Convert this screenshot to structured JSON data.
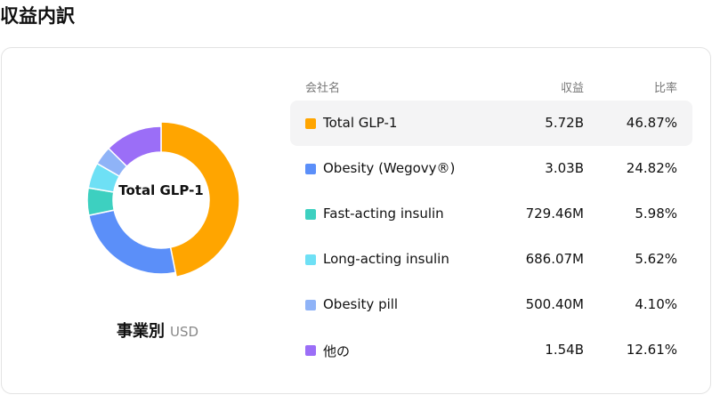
{
  "title": "収益内訳",
  "chart": {
    "center_label": "Total GLP-1",
    "caption": "事業別",
    "unit": "USD"
  },
  "table": {
    "headers": {
      "name": "会社名",
      "revenue": "収益",
      "rate": "比率"
    },
    "rows": [
      {
        "name": "Total GLP-1",
        "revenue": "5.72B",
        "rate": "46.87%",
        "color": "#ffa500",
        "active": true
      },
      {
        "name": "Obesity (Wegovy®)",
        "revenue": "3.03B",
        "rate": "24.82%",
        "color": "#5b8ff9",
        "active": false
      },
      {
        "name": "Fast-acting insulin",
        "revenue": "729.46M",
        "rate": "5.98%",
        "color": "#3dd0c0",
        "active": false
      },
      {
        "name": "Long-acting insulin",
        "revenue": "686.07M",
        "rate": "5.62%",
        "color": "#6ee0f5",
        "active": false
      },
      {
        "name": "Obesity pill",
        "revenue": "500.40M",
        "rate": "4.10%",
        "color": "#8fb3f7",
        "active": false
      },
      {
        "name": "他の",
        "revenue": "1.54B",
        "rate": "12.61%",
        "color": "#9b6ef7",
        "active": false
      }
    ]
  },
  "chart_data": {
    "type": "pie",
    "donut": true,
    "categories": [
      "Total GLP-1",
      "Obesity (Wegovy®)",
      "Fast-acting insulin",
      "Long-acting insulin",
      "Obesity pill",
      "他の"
    ],
    "values": [
      46.87,
      24.82,
      5.98,
      5.62,
      4.1,
      12.61
    ],
    "colors": [
      "#ffa500",
      "#5b8ff9",
      "#3dd0c0",
      "#6ee0f5",
      "#8fb3f7",
      "#9b6ef7"
    ],
    "active_index": 0
  }
}
